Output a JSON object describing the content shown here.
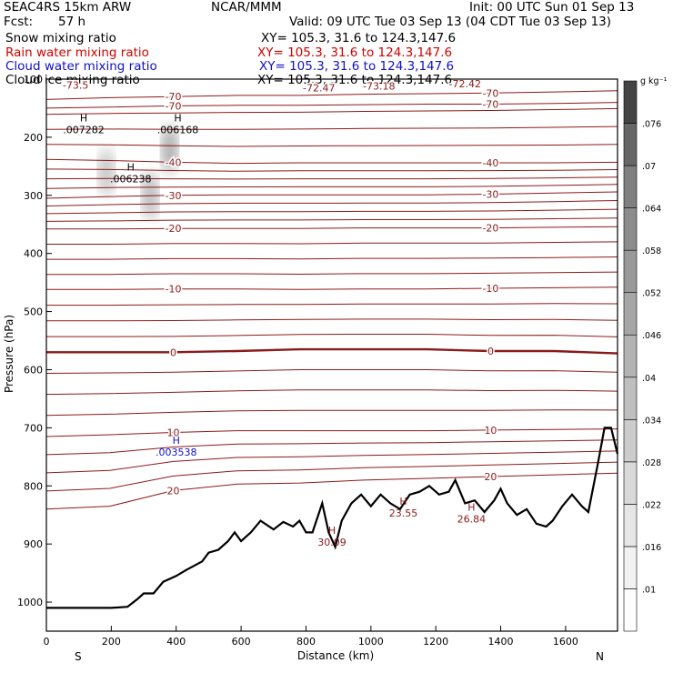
{
  "header": {
    "model": "SEAC4RS 15km ARW",
    "org": "NCAR/MMM",
    "init": "Init: 00 UTC Sun 01 Sep 13",
    "fcst_label": "Fcst:",
    "fcst_value": "57 h",
    "valid": "Valid: 09 UTC Tue 03 Sep 13 (04 CDT Tue 03 Sep 13)"
  },
  "fields": [
    {
      "name": "Snow mixing ratio",
      "xy": "XY= 105.3, 31.6 to 124.3,147.6",
      "color": "#000000"
    },
    {
      "name": "Rain water mixing ratio",
      "xy": "XY= 105.3, 31.6 to 124.3,147.6",
      "color": "#d40000"
    },
    {
      "name": "Cloud water mixing ratio",
      "xy": "XY= 105.3, 31.6 to 124.3,147.6",
      "color": "#1010c8"
    },
    {
      "name": "Cloud ice mixing ratio",
      "xy": "XY= 105.3, 31.6 to 124.3,147.6",
      "color": "#000000"
    }
  ],
  "chart_data": {
    "type": "cross-section",
    "xlabel": "Distance (km)",
    "ylabel": "Pressure (hPa)",
    "xlim": [
      0,
      1760
    ],
    "ylim": [
      1050,
      100
    ],
    "x_ticks": [
      0,
      200,
      400,
      600,
      800,
      1000,
      1200,
      1400,
      1600
    ],
    "y_ticks": [
      200,
      300,
      400,
      500,
      600,
      700,
      800,
      900,
      1000
    ],
    "y_tick_labels": [
      "200",
      "300",
      "400",
      "500",
      "600",
      "700",
      "800",
      "900",
      "1000"
    ],
    "x_tick_labels": [
      "0",
      "200",
      "400",
      "600",
      "800",
      "1000",
      "1200",
      "1400",
      "1600"
    ],
    "y_top_label": "100",
    "endpoints": {
      "left": "S",
      "right": "N"
    },
    "colorbar": {
      "units": "g kg⁻¹",
      "levels": [
        ".01",
        ".016",
        ".022",
        ".028",
        ".034",
        ".04",
        ".046",
        ".052",
        ".058",
        ".064",
        ".07",
        ".076"
      ],
      "colors": [
        "#ffffff",
        "#f2f2f2",
        "#e6e6e6",
        "#d9d9d9",
        "#cccccc",
        "#bfbfbf",
        "#b3b3b3",
        "#a6a6a6",
        "#999999",
        "#8c8c8c",
        "#808080",
        "#666666",
        "#444444"
      ]
    },
    "temperature_contours": [
      {
        "label": "-70",
        "p": [
          150,
          148,
          146,
          145,
          145,
          144,
          143,
          143,
          142,
          140
        ]
      },
      {
        "label": "-70",
        "p": [
          135,
          132,
          130,
          128,
          128,
          126,
          125,
          124,
          122,
          120
        ]
      },
      {
        "label": "-40",
        "p": [
          238,
          240,
          243,
          245,
          244,
          244,
          244,
          244,
          244,
          243
        ]
      },
      {
        "label": "-30",
        "p": [
          305,
          302,
          300,
          299,
          299,
          299,
          299,
          298,
          296,
          294
        ]
      },
      {
        "label": "-20",
        "p": [
          358,
          358,
          357,
          357,
          357,
          356,
          356,
          356,
          355,
          354
        ]
      },
      {
        "label": "-10",
        "p": [
          462,
          462,
          461,
          461,
          462,
          461,
          461,
          460,
          459,
          458
        ]
      },
      {
        "label": "0",
        "p": [
          570,
          570,
          570,
          568,
          565,
          565,
          565,
          568,
          568,
          572
        ]
      },
      {
        "label": "10",
        "p": [
          715,
          712,
          708,
          705,
          705,
          705,
          705,
          704,
          703,
          702
        ]
      },
      {
        "label": "20",
        "p": [
          840,
          835,
          808,
          797,
          795,
          790,
          787,
          784,
          781,
          778
        ]
      }
    ],
    "contour_label_lines": [
      {
        "label": "-73.5",
        "x": 90,
        "p": 110,
        "color": "#8b1a1a"
      },
      {
        "label": "-72.47",
        "x": 840,
        "p": 115,
        "color": "#8b1a1a"
      },
      {
        "label": "-73.18",
        "x": 1025,
        "p": 112,
        "color": "#8b1a1a"
      },
      {
        "label": "-72.42",
        "x": 1290,
        "p": 108,
        "color": "#8b1a1a"
      }
    ],
    "extrema": [
      {
        "mark": "H",
        "value": ".007282",
        "x": 115,
        "p": 185,
        "color": "#000000"
      },
      {
        "mark": "H",
        "value": ".006168",
        "x": 405,
        "p": 185,
        "color": "#000000"
      },
      {
        "mark": "H",
        "value": ".006238",
        "x": 260,
        "p": 270,
        "color": "#000000"
      },
      {
        "mark": "H",
        "value": ".003538",
        "x": 400,
        "p": 740,
        "color": "#1010c8"
      },
      {
        "mark": "H",
        "value": "30.09",
        "x": 880,
        "p": 895,
        "color": "#8b1a1a"
      },
      {
        "mark": "H",
        "value": "23.55",
        "x": 1100,
        "p": 845,
        "color": "#8b1a1a"
      },
      {
        "mark": "H",
        "value": "26.84",
        "x": 1310,
        "p": 855,
        "color": "#8b1a1a"
      }
    ],
    "terrain": {
      "x": [
        0,
        50,
        100,
        200,
        250,
        280,
        300,
        330,
        360,
        400,
        430,
        480,
        500,
        530,
        560,
        580,
        600,
        630,
        660,
        700,
        730,
        760,
        780,
        800,
        820,
        850,
        870,
        890,
        910,
        940,
        970,
        1000,
        1030,
        1060,
        1090,
        1120,
        1150,
        1180,
        1210,
        1240,
        1260,
        1290,
        1320,
        1350,
        1380,
        1400,
        1420,
        1450,
        1480,
        1510,
        1540,
        1560,
        1590,
        1620,
        1650,
        1670,
        1700,
        1720,
        1740,
        1760
      ],
      "p": [
        1010,
        1010,
        1010,
        1010,
        1008,
        995,
        985,
        985,
        965,
        955,
        945,
        930,
        915,
        910,
        895,
        880,
        895,
        880,
        860,
        875,
        862,
        870,
        860,
        880,
        880,
        830,
        880,
        905,
        860,
        830,
        815,
        835,
        815,
        830,
        840,
        815,
        810,
        800,
        815,
        810,
        790,
        830,
        825,
        845,
        825,
        805,
        830,
        850,
        840,
        865,
        870,
        860,
        835,
        815,
        835,
        845,
        760,
        700,
        700,
        745
      ]
    }
  }
}
